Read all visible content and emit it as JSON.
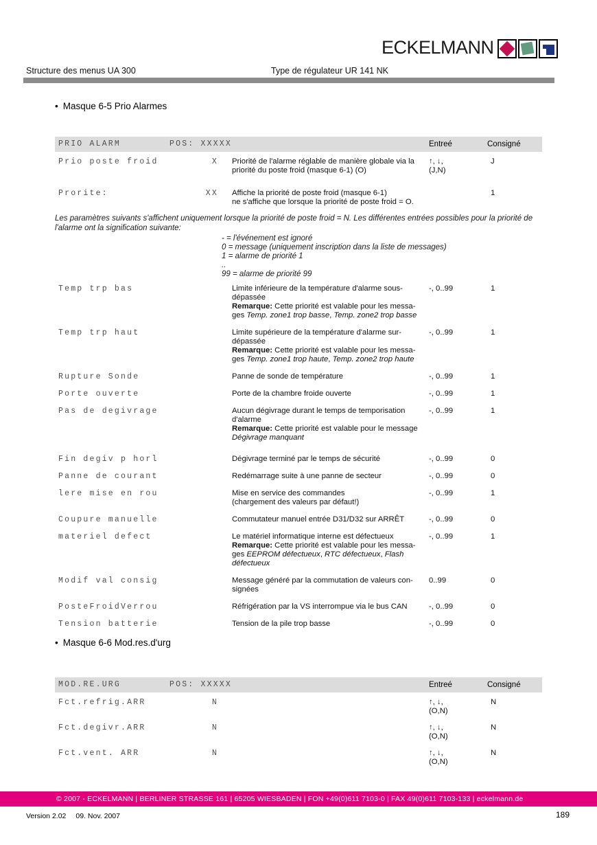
{
  "logo": {
    "text": "ECKELMANN"
  },
  "header": {
    "left": "Structure des menus UA 300",
    "right": "Type de régulateur UR 141 NK"
  },
  "sections": [
    {
      "title": "Masque 6-5 Prio Alarmes"
    },
    {
      "title": "Masque 6-6 Mod.res.d'urg"
    }
  ],
  "table1": {
    "name": "PRIO ALARM",
    "pos": "POS: XXXXX",
    "entree_header": "Entreé",
    "consigne_header": "Consigné",
    "rows_top": [
      {
        "label": "Prio poste froid",
        "value": "X",
        "desc": [
          {
            "t": "Priorité de l'alarme réglable de manière globale via la"
          },
          {
            "br": true
          },
          {
            "t": "priorité du poste froid (masque 6-1) (O)"
          }
        ],
        "entree": [
          "↑, ↓,",
          "(J,N)"
        ],
        "consigne": "J"
      },
      {
        "label": "Prorite:",
        "value": "XX",
        "desc": [
          {
            "t": "Affiche la priorité de poste froid (masque 6-1)"
          },
          {
            "br": true
          },
          {
            "t": "ne s'affiche que lorsque la priorité de poste froid = O."
          }
        ],
        "entree": [],
        "consigne": "1"
      }
    ],
    "note": {
      "intro_lines": [
        "Les paramètres suivants s'affichent uniquement lorsque la priorité de poste froid = N. Les différentes entrées possibles pour la priorité de",
        "l'alarme ont la signification suivante:"
      ],
      "items": [
        "- = l'événement est ignoré",
        "0 = message (uniquement inscription dans la liste de messages)",
        "1 = alarme de priorité 1",
        "..",
        "99 = alarme de priorité 99"
      ]
    },
    "rows": [
      {
        "label": "Temp trp bas",
        "value": "",
        "desc": [
          {
            "t": "Limite inférieure de la température d'alarme sous-"
          },
          {
            "br": true
          },
          {
            "t": "dépassée"
          },
          {
            "br": true
          },
          {
            "t": "Remarque:",
            "s": "b"
          },
          {
            "t": " Cette priorité est valable pour les messa-"
          },
          {
            "br": true
          },
          {
            "t": "ges "
          },
          {
            "t": "Temp. zone1 trop basse",
            "s": "i"
          },
          {
            "t": ", "
          },
          {
            "t": "Temp. zone2 trop basse",
            "s": "i"
          }
        ],
        "entree": [
          "-, 0..99"
        ],
        "consigne": "1"
      },
      {
        "label": "Temp trp haut",
        "value": "",
        "desc": [
          {
            "t": "Limite supérieure de la température d'alarme sur-"
          },
          {
            "br": true
          },
          {
            "t": "dépassée"
          },
          {
            "br": true
          },
          {
            "t": "Remarque:",
            "s": "b"
          },
          {
            "t": " Cette priorité est valable pour les messa-"
          },
          {
            "br": true
          },
          {
            "t": "ges "
          },
          {
            "t": "Temp. zone1 trop haute",
            "s": "i"
          },
          {
            "t": ", "
          },
          {
            "t": "Temp. zone2 trop haute",
            "s": "i"
          }
        ],
        "entree": [
          "-, 0..99"
        ],
        "consigne": "1"
      },
      {
        "label": "Rupture Sonde",
        "value": "",
        "desc": [
          {
            "t": "Panne de sonde de température"
          }
        ],
        "entree": [
          "-, 0..99"
        ],
        "consigne": "1"
      },
      {
        "label": "Porte ouverte",
        "value": "",
        "desc": [
          {
            "t": "Porte de la chambre froide ouverte"
          }
        ],
        "entree": [
          "-, 0..99"
        ],
        "consigne": "1"
      },
      {
        "label": "Pas de degivrage",
        "value": "",
        "desc": [
          {
            "t": "Aucun dégivrage durant le temps de temporisation"
          },
          {
            "br": true
          },
          {
            "t": "d'alarme"
          },
          {
            "br": true
          },
          {
            "t": "Remarque:",
            "s": "b"
          },
          {
            "t": " Cette priorité est valable pour le message"
          },
          {
            "br": true
          },
          {
            "t": "Dégivrage manquant",
            "s": "i"
          }
        ],
        "entree": [
          "-, 0..99"
        ],
        "consigne": "1"
      },
      {
        "label": "Fin degiv p horl",
        "value": "",
        "desc": [
          {
            "t": "Dégivrage terminé par le temps de sécurité"
          }
        ],
        "entree": [
          "-, 0..99"
        ],
        "consigne": "0"
      },
      {
        "label": "Panne de courant",
        "value": "",
        "desc": [
          {
            "t": "Redémarrage suite à une panne de secteur"
          }
        ],
        "entree": [
          "-, 0..99"
        ],
        "consigne": "0"
      },
      {
        "label": "lere mise en rou",
        "value": "",
        "desc": [
          {
            "t": "Mise en service des commandes"
          },
          {
            "br": true
          },
          {
            "t": "(chargement des valeurs par défaut!)"
          }
        ],
        "entree": [
          "-, 0..99"
        ],
        "consigne": "1"
      },
      {
        "label": "Coupure manuelle",
        "value": "",
        "desc": [
          {
            "t": "Commutateur manuel entrée D31/D32 sur ARRÊT"
          }
        ],
        "entree": [
          "-, 0..99"
        ],
        "consigne": "0"
      },
      {
        "label": "materiel defect",
        "value": "",
        "desc": [
          {
            "t": "Le matériel informatique interne est défectueux"
          },
          {
            "br": true
          },
          {
            "t": "Remarque:",
            "s": "b"
          },
          {
            "t": " Cette priorité est valable pour les messa-"
          },
          {
            "br": true
          },
          {
            "t": "ges "
          },
          {
            "t": "EEPROM défectueux",
            "s": "i"
          },
          {
            "t": ", "
          },
          {
            "t": "RTC défectueux",
            "s": "i"
          },
          {
            "t": ", "
          },
          {
            "t": "Flash",
            "s": "i"
          },
          {
            "br": true
          },
          {
            "t": "défectueux",
            "s": "i"
          }
        ],
        "entree": [
          "-, 0..99"
        ],
        "consigne": "1"
      },
      {
        "label": "Modif val consig",
        "value": "",
        "desc": [
          {
            "t": "Message généré par la commutation de valeurs con-"
          },
          {
            "br": true
          },
          {
            "t": "signées"
          }
        ],
        "entree": [
          "0..99"
        ],
        "consigne": "0"
      },
      {
        "label": "PosteFroidVerrou",
        "value": "",
        "desc": [
          {
            "t": "Réfrigération par la VS interrompue via le bus CAN"
          }
        ],
        "entree": [
          "-, 0..99"
        ],
        "consigne": "0"
      },
      {
        "label": "Tension batterie",
        "value": "",
        "desc": [
          {
            "t": "Tension de la pile trop basse"
          }
        ],
        "entree": [
          "-, 0..99"
        ],
        "consigne": "0"
      }
    ]
  },
  "table2": {
    "name": "MOD.RE.URG",
    "pos": "POS: XXXXX",
    "entree_header": "Entreé",
    "consigne_header": "Consigné",
    "rows": [
      {
        "label": "Fct.refrig.ARR",
        "value": "N",
        "desc": [],
        "entree": [
          "↑, ↓,",
          "(O,N)"
        ],
        "consigne": "N"
      },
      {
        "label": "Fct.degivr.ARR",
        "value": "N",
        "desc": [],
        "entree": [
          "↑, ↓,",
          "(O,N)"
        ],
        "consigne": "N"
      },
      {
        "label": "Fct.vent. ARR",
        "value": "N",
        "desc": [],
        "entree": [
          "↑, ↓,",
          "(O,N)"
        ],
        "consigne": "N"
      }
    ]
  },
  "footer": {
    "bar": "© 2007 - ECKELMANN | BERLINER STRASSE 161 | 65205 WIESBADEN | FON +49(0)611 7103-0 | FAX 49(0)611 7103-133 | eckelmann.de",
    "version": "Version 2.02",
    "date": "09. Nov. 2007",
    "page": "189"
  },
  "colors": {
    "pink": "#e3007d",
    "gray_bar": "#8c8c8c",
    "thead_bg": "#dcdcdc",
    "logo_red": "#c4114f",
    "logo_green": "#619c80",
    "logo_blue": "#1d3480"
  }
}
